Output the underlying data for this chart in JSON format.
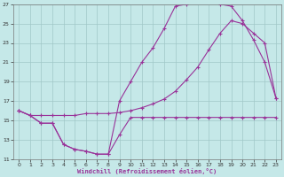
{
  "xlabel": "Windchill (Refroidissement éolien,°C)",
  "xlim": [
    -0.5,
    23.5
  ],
  "ylim": [
    11,
    27
  ],
  "xticks": [
    0,
    1,
    2,
    3,
    4,
    5,
    6,
    7,
    8,
    9,
    10,
    11,
    12,
    13,
    14,
    15,
    16,
    17,
    18,
    19,
    20,
    21,
    22,
    23
  ],
  "yticks": [
    11,
    13,
    15,
    17,
    19,
    21,
    23,
    25,
    27
  ],
  "bg_color": "#c5e8e8",
  "line_color": "#993399",
  "grid_color": "#a0c8c8",
  "curve1_x": [
    0,
    1,
    2,
    3,
    4,
    5,
    6,
    7,
    8,
    9,
    10,
    11,
    12,
    13,
    14,
    15,
    16,
    17,
    18,
    19,
    20,
    21,
    22,
    23
  ],
  "curve1_y": [
    16.0,
    15.5,
    14.7,
    14.7,
    12.5,
    12.0,
    11.8,
    11.5,
    11.5,
    13.5,
    15.3,
    15.3,
    15.3,
    15.3,
    15.3,
    15.3,
    15.3,
    15.3,
    15.3,
    15.3,
    15.3,
    15.3,
    15.3,
    15.3
  ],
  "curve2_x": [
    0,
    1,
    2,
    3,
    4,
    5,
    6,
    7,
    8,
    9,
    10,
    11,
    12,
    13,
    14,
    15,
    16,
    17,
    18,
    19,
    20,
    21,
    22,
    23
  ],
  "curve2_y": [
    16.0,
    15.5,
    14.7,
    14.7,
    12.5,
    12.0,
    11.8,
    11.5,
    11.5,
    17.0,
    19.0,
    21.0,
    22.5,
    24.5,
    26.8,
    27.0,
    27.3,
    27.3,
    27.0,
    26.8,
    25.3,
    23.3,
    21.0,
    17.3
  ],
  "curve3_x": [
    0,
    1,
    2,
    3,
    4,
    5,
    6,
    7,
    8,
    9,
    10,
    11,
    12,
    13,
    14,
    15,
    16,
    17,
    18,
    19,
    20,
    21,
    22,
    23
  ],
  "curve3_y": [
    16.0,
    15.5,
    15.5,
    15.5,
    15.5,
    15.5,
    15.7,
    15.7,
    15.7,
    15.8,
    16.0,
    16.3,
    16.7,
    17.2,
    18.0,
    19.2,
    20.5,
    22.3,
    24.0,
    25.3,
    25.0,
    24.0,
    23.0,
    17.3
  ]
}
